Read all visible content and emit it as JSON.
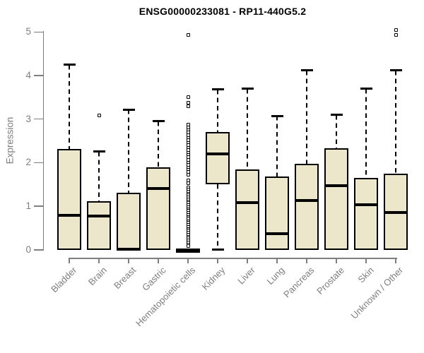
{
  "chart_data": {
    "type": "boxplot",
    "title": "ENSG00000233081 - RP11-440G5.2",
    "ylabel": "Expression",
    "xlabel": "",
    "ylim": [
      0,
      5
    ],
    "yticks": [
      0,
      1,
      2,
      3,
      4,
      5
    ],
    "grid": false,
    "legend": false,
    "categories": [
      "Bladder",
      "Brain",
      "Breast",
      "Gastric",
      "Hematopoietic cells",
      "Kidney",
      "Liver",
      "Lung",
      "Pancreas",
      "Prostate",
      "Skin",
      "Unknown / Other"
    ],
    "series": [
      {
        "category": "Bladder",
        "whisker_low": 0,
        "q1": 0,
        "median": 0.79,
        "q3": 2.32,
        "whisker_high": 4.25,
        "outliers": []
      },
      {
        "category": "Brain",
        "whisker_low": 0,
        "q1": 0,
        "median": 0.78,
        "q3": 1.11,
        "whisker_high": 2.25,
        "outliers": [
          3.08
        ]
      },
      {
        "category": "Breast",
        "whisker_low": 0,
        "q1": 0,
        "median": 0.02,
        "q3": 1.31,
        "whisker_high": 3.22,
        "outliers": []
      },
      {
        "category": "Gastric",
        "whisker_low": 0,
        "q1": 0,
        "median": 1.4,
        "q3": 1.9,
        "whisker_high": 2.95,
        "outliers": []
      },
      {
        "category": "Hematopoietic cells",
        "whisker_low": 0,
        "q1": 0,
        "median": 0,
        "q3": 0,
        "whisker_high": 0,
        "outliers": [
          4.93,
          3.5,
          3.37,
          3.3,
          2.87,
          2.81,
          2.75,
          2.69,
          2.63,
          2.57,
          2.51,
          2.46,
          2.4,
          2.34,
          2.29,
          2.23,
          2.17,
          2.12,
          2.06,
          2.0,
          1.95,
          1.89,
          1.84,
          1.78,
          1.73,
          1.59,
          1.53,
          1.43,
          1.38,
          1.34,
          1.29,
          1.25,
          1.2,
          1.16,
          1.11,
          1.07,
          1.02,
          0.98,
          0.93,
          0.89,
          0.84,
          0.8,
          0.75,
          0.71,
          0.66,
          0.62,
          0.57,
          0.53,
          0.48,
          0.44,
          0.39,
          0.35,
          0.3,
          0.26,
          0.21,
          0.17,
          0.12,
          0.08
        ]
      },
      {
        "category": "Kidney",
        "whisker_low": 0,
        "q1": 1.51,
        "median": 2.2,
        "q3": 2.71,
        "whisker_high": 3.68,
        "outliers": []
      },
      {
        "category": "Liver",
        "whisker_low": 0,
        "q1": 0,
        "median": 1.09,
        "q3": 1.85,
        "whisker_high": 3.7,
        "outliers": []
      },
      {
        "category": "Lung",
        "whisker_low": 0,
        "q1": 0,
        "median": 0.37,
        "q3": 1.69,
        "whisker_high": 3.07,
        "outliers": []
      },
      {
        "category": "Pancreas",
        "whisker_low": 0,
        "q1": 0,
        "median": 1.13,
        "q3": 1.97,
        "whisker_high": 4.12,
        "outliers": []
      },
      {
        "category": "Prostate",
        "whisker_low": 0,
        "q1": 0,
        "median": 1.47,
        "q3": 2.33,
        "whisker_high": 3.1,
        "outliers": []
      },
      {
        "category": "Skin",
        "whisker_low": 0,
        "q1": 0,
        "median": 1.04,
        "q3": 1.65,
        "whisker_high": 3.7,
        "outliers": []
      },
      {
        "category": "Unknown / Other",
        "whisker_low": 0,
        "q1": 0,
        "median": 0.85,
        "q3": 1.74,
        "whisker_high": 4.12,
        "outliers": [
          5.05,
          4.93
        ]
      }
    ],
    "colors": {
      "box_fill": "#ECE7CB",
      "box_border": "#000000",
      "median": "#000000",
      "whisker": "#000000",
      "outlier": "#000000",
      "axis": "#7e7e7e",
      "tick_text": "#7e7e7e",
      "title_text": "#000000",
      "background": "#ffffff"
    }
  }
}
